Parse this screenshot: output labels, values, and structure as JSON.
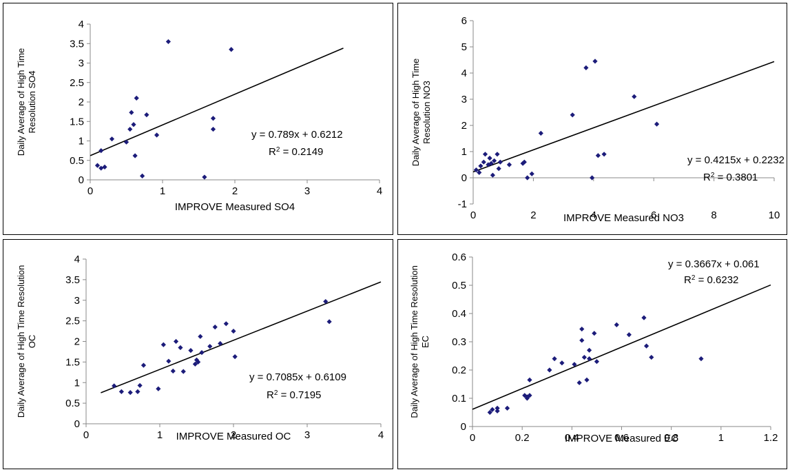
{
  "charts": [
    {
      "type": "scatter",
      "xlabel": "IMPROVE Measured SO4",
      "ylabel_line1": "Daily Average of High Time",
      "ylabel_line2": "Resolution SO4",
      "xlim": [
        0,
        4
      ],
      "xticks": [
        0,
        1,
        2,
        3,
        4
      ],
      "ylim": [
        0,
        4
      ],
      "yticks": [
        "0",
        "0.5",
        "1",
        "1.5",
        "2",
        "2.5",
        "3",
        "3.5",
        "4"
      ],
      "grid": false,
      "marker_color": "#1c1c7a",
      "trendline": {
        "slope": 0.789,
        "intercept": 0.6212,
        "x_end": 3.5
      },
      "equation": "y = 0.789x + 0.6212",
      "r2_prefix": "R",
      "r2_sup": "2",
      "r2_value": " = 0.2149",
      "points": [
        [
          0.1,
          0.37
        ],
        [
          0.15,
          0.3
        ],
        [
          0.2,
          0.33
        ],
        [
          0.15,
          0.75
        ],
        [
          0.3,
          1.05
        ],
        [
          0.5,
          0.97
        ],
        [
          0.55,
          1.3
        ],
        [
          0.57,
          1.73
        ],
        [
          0.6,
          1.42
        ],
        [
          0.62,
          0.62
        ],
        [
          0.64,
          2.1
        ],
        [
          0.72,
          0.1
        ],
        [
          0.78,
          1.67
        ],
        [
          0.92,
          1.15
        ],
        [
          1.08,
          3.55
        ],
        [
          1.58,
          0.07
        ],
        [
          1.7,
          1.58
        ],
        [
          1.7,
          1.3
        ],
        [
          1.95,
          3.35
        ]
      ]
    },
    {
      "type": "scatter",
      "xlabel": "IMPROVE Measured NO3",
      "ylabel_line1": "Daily Average of High Time",
      "ylabel_line2": "Resolution NO3",
      "xlim": [
        0,
        10
      ],
      "xticks": [
        0,
        2,
        4,
        6,
        8,
        10
      ],
      "ylim": [
        -1,
        6
      ],
      "yticks": [
        "-1",
        "0",
        "1",
        "2",
        "3",
        "4",
        "5",
        "6"
      ],
      "grid": false,
      "marker_color": "#1c1c7a",
      "trendline": {
        "slope": 0.4215,
        "intercept": 0.2232,
        "x_end": 10
      },
      "equation": "y = 0.4215x + 0.2232",
      "r2_prefix": "R",
      "r2_sup": "2",
      "r2_value": " = 0.3801",
      "points": [
        [
          0.1,
          0.3
        ],
        [
          0.2,
          0.2
        ],
        [
          0.25,
          0.45
        ],
        [
          0.35,
          0.6
        ],
        [
          0.4,
          0.9
        ],
        [
          0.5,
          0.5
        ],
        [
          0.55,
          0.75
        ],
        [
          0.6,
          0.55
        ],
        [
          0.65,
          0.1
        ],
        [
          0.7,
          0.65
        ],
        [
          0.8,
          0.9
        ],
        [
          0.85,
          0.35
        ],
        [
          0.9,
          0.6
        ],
        [
          1.2,
          0.5
        ],
        [
          1.65,
          0.55
        ],
        [
          1.7,
          0.6
        ],
        [
          1.8,
          0.0
        ],
        [
          1.95,
          0.15
        ],
        [
          2.25,
          1.7
        ],
        [
          3.3,
          2.4
        ],
        [
          3.75,
          4.2
        ],
        [
          3.95,
          0.0
        ],
        [
          4.05,
          4.45
        ],
        [
          4.15,
          0.85
        ],
        [
          4.35,
          0.9
        ],
        [
          5.35,
          3.1
        ],
        [
          6.1,
          2.05
        ]
      ]
    },
    {
      "type": "scatter",
      "xlabel": "IMPROVE Measured OC",
      "ylabel_line1": "Daily Average of High Time Resolution",
      "ylabel_line2": "OC",
      "xlim": [
        0,
        4
      ],
      "xticks": [
        0,
        1,
        2,
        3,
        4
      ],
      "ylim": [
        0,
        4
      ],
      "yticks": [
        "0",
        "0.5",
        "1",
        "1.5",
        "2",
        "2.5",
        "3",
        "3.5",
        "4"
      ],
      "grid": false,
      "marker_color": "#1c1c7a",
      "trendline": {
        "slope": 0.7085,
        "intercept": 0.6109,
        "x_start": 0.2,
        "x_end": 4
      },
      "equation": "y = 0.7085x + 0.6109",
      "r2_prefix": "R",
      "r2_sup": "2",
      "r2_value": " = 0.7195",
      "points": [
        [
          0.38,
          0.92
        ],
        [
          0.48,
          0.78
        ],
        [
          0.6,
          0.76
        ],
        [
          0.7,
          0.78
        ],
        [
          0.73,
          0.93
        ],
        [
          0.78,
          1.42
        ],
        [
          0.98,
          0.85
        ],
        [
          1.05,
          1.92
        ],
        [
          1.12,
          1.52
        ],
        [
          1.18,
          1.28
        ],
        [
          1.22,
          2.0
        ],
        [
          1.28,
          1.85
        ],
        [
          1.32,
          1.27
        ],
        [
          1.42,
          1.78
        ],
        [
          1.48,
          1.45
        ],
        [
          1.5,
          1.55
        ],
        [
          1.52,
          1.5
        ],
        [
          1.55,
          2.12
        ],
        [
          1.57,
          1.73
        ],
        [
          1.68,
          1.88
        ],
        [
          1.75,
          2.35
        ],
        [
          1.82,
          1.95
        ],
        [
          1.9,
          2.43
        ],
        [
          2.0,
          2.25
        ],
        [
          2.02,
          1.63
        ],
        [
          3.25,
          2.97
        ],
        [
          3.3,
          2.48
        ]
      ]
    },
    {
      "type": "scatter",
      "xlabel": "IMPROVE Measured EC",
      "ylabel_line1": "Daily Average of High Time Resolution",
      "ylabel_line2": "EC",
      "xlim": [
        0,
        1.2
      ],
      "xticks": [
        "0",
        "0.2",
        "0.4",
        "0.6",
        "0.8",
        "1",
        "1.2"
      ],
      "ylim": [
        0,
        0.6
      ],
      "yticks": [
        "0",
        "0.1",
        "0.2",
        "0.3",
        "0.4",
        "0.5",
        "0.6"
      ],
      "grid": false,
      "marker_color": "#1c1c7a",
      "trendline": {
        "slope": 0.3667,
        "intercept": 0.061,
        "x_end": 1.2
      },
      "equation": "y = 0.3667x + 0.061",
      "r2_prefix": "R",
      "r2_sup": "2",
      "r2_value": " = 0.6232",
      "points": [
        [
          0.07,
          0.05
        ],
        [
          0.08,
          0.06
        ],
        [
          0.1,
          0.055
        ],
        [
          0.1,
          0.065
        ],
        [
          0.14,
          0.065
        ],
        [
          0.21,
          0.11
        ],
        [
          0.22,
          0.1
        ],
        [
          0.22,
          0.105
        ],
        [
          0.23,
          0.11
        ],
        [
          0.23,
          0.165
        ],
        [
          0.31,
          0.2
        ],
        [
          0.33,
          0.24
        ],
        [
          0.36,
          0.225
        ],
        [
          0.41,
          0.22
        ],
        [
          0.43,
          0.155
        ],
        [
          0.44,
          0.345
        ],
        [
          0.44,
          0.305
        ],
        [
          0.45,
          0.245
        ],
        [
          0.46,
          0.165
        ],
        [
          0.47,
          0.24
        ],
        [
          0.47,
          0.27
        ],
        [
          0.49,
          0.33
        ],
        [
          0.5,
          0.23
        ],
        [
          0.58,
          0.36
        ],
        [
          0.63,
          0.325
        ],
        [
          0.69,
          0.385
        ],
        [
          0.7,
          0.285
        ],
        [
          0.72,
          0.245
        ],
        [
          0.92,
          0.24
        ]
      ]
    }
  ]
}
